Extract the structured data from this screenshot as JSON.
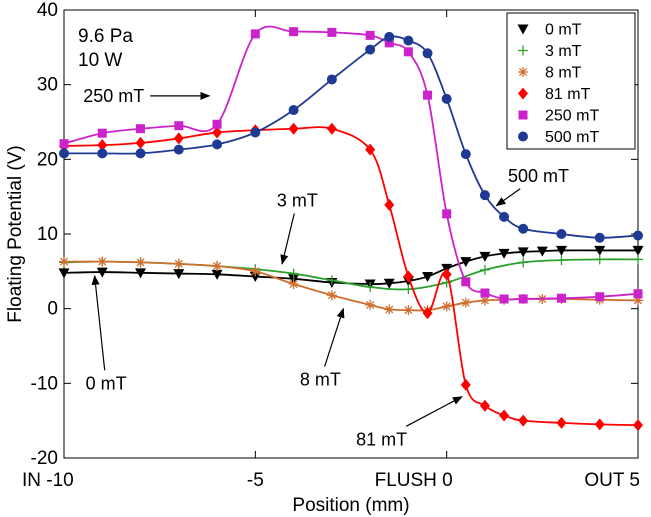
{
  "chart_data": {
    "type": "line",
    "xlabel": "Position (mm)",
    "ylabel": "Floating Potential (V)",
    "xlim": [
      -10,
      5
    ],
    "ylim": [
      -20,
      40
    ],
    "x_ticks": [
      {
        "value": -10,
        "label": "IN -10"
      },
      {
        "value": -5,
        "label": "-5"
      },
      {
        "value": 0,
        "label": "FLUSH 0"
      },
      {
        "value": 5,
        "label": "OUT 5"
      }
    ],
    "y_ticks": [
      -20,
      -10,
      0,
      10,
      20,
      30,
      40
    ],
    "conditions": [
      "9.6 Pa",
      "10 W"
    ],
    "legend_position": "top-right",
    "series": [
      {
        "name": "0 mT",
        "color": "#000000",
        "marker": "triangle-down",
        "x": [
          -10,
          -9,
          -8,
          -7,
          -6,
          -5,
          -4,
          -3,
          -2,
          -1.5,
          -1,
          -0.5,
          0,
          0.5,
          1,
          1.5,
          2,
          2.5,
          3,
          4,
          5
        ],
        "y": [
          4.8,
          4.9,
          4.8,
          4.7,
          4.6,
          4.3,
          4.0,
          3.5,
          3.3,
          3.4,
          3.7,
          4.3,
          5.4,
          6.3,
          7.0,
          7.4,
          7.6,
          7.7,
          7.8,
          7.8,
          7.8
        ]
      },
      {
        "name": "3 mT",
        "color": "#2ca02c",
        "marker": "plus",
        "x": [
          -10,
          -9,
          -8,
          -7,
          -6,
          -5,
          -4,
          -3,
          -2,
          -1,
          0,
          1,
          2,
          3,
          4,
          5
        ],
        "y": [
          6.2,
          6.3,
          6.2,
          6.0,
          5.7,
          5.3,
          4.7,
          3.8,
          2.9,
          2.6,
          3.5,
          5.2,
          6.2,
          6.5,
          6.6,
          6.6
        ]
      },
      {
        "name": "8 mT",
        "color": "#d07030",
        "marker": "asterisk",
        "x": [
          -10,
          -9,
          -8,
          -7,
          -6,
          -5,
          -4,
          -3,
          -2,
          -1.5,
          -1,
          -0.5,
          0,
          0.5,
          1,
          1.5,
          2,
          2.5,
          3,
          4,
          5
        ],
        "y": [
          6.3,
          6.3,
          6.2,
          6.0,
          5.7,
          5.0,
          3.3,
          1.8,
          0.5,
          -0.1,
          -0.2,
          -0.2,
          0.3,
          0.8,
          1.1,
          1.2,
          1.3,
          1.3,
          1.3,
          1.2,
          1.1
        ]
      },
      {
        "name": "81 mT",
        "color": "#ff0000",
        "marker": "diamond",
        "x": [
          -10,
          -9,
          -8,
          -7,
          -6,
          -5,
          -4,
          -3,
          -2,
          -1.5,
          -1,
          -0.5,
          0,
          0.5,
          1,
          1.5,
          2,
          3,
          4,
          5
        ],
        "y": [
          21.8,
          21.9,
          22.2,
          22.8,
          23.6,
          23.9,
          24.1,
          24.1,
          21.3,
          13.9,
          4.3,
          -0.6,
          4.6,
          -10.2,
          -13.0,
          -14.3,
          -15.0,
          -15.3,
          -15.5,
          -15.6
        ]
      },
      {
        "name": "250 mT",
        "color": "#cc22cc",
        "marker": "square",
        "x": [
          -10,
          -9,
          -8,
          -7,
          -6,
          -5,
          -4,
          -3,
          -2,
          -1.5,
          -1,
          -0.5,
          0,
          0.5,
          1,
          1.5,
          2,
          3,
          4,
          5
        ],
        "y": [
          22.1,
          23.5,
          24.1,
          24.5,
          24.7,
          36.8,
          37.1,
          37.0,
          36.6,
          35.6,
          34.4,
          28.6,
          12.7,
          3.6,
          2.1,
          1.3,
          1.3,
          1.4,
          1.6,
          2.0
        ]
      },
      {
        "name": "500 mT",
        "color": "#1f3a93",
        "marker": "circle",
        "x": [
          -10,
          -9,
          -8,
          -7,
          -6,
          -5,
          -4,
          -3,
          -2,
          -1.5,
          -1,
          -0.5,
          0,
          0.5,
          1,
          1.5,
          2,
          3,
          4,
          5
        ],
        "y": [
          20.8,
          20.8,
          20.8,
          21.3,
          22.0,
          23.6,
          26.6,
          30.7,
          34.7,
          36.4,
          35.9,
          34.2,
          28.1,
          20.7,
          15.2,
          12.3,
          10.7,
          10.0,
          9.5,
          9.8
        ]
      }
    ],
    "annotations": [
      {
        "text": "250 mT",
        "target_x": -6.2,
        "target_y": 28.5,
        "text_x": -8.7,
        "text_y": 28.5
      },
      {
        "text": "3 mT",
        "target_x": -4.3,
        "target_y": 6.0,
        "text_x": -3.9,
        "text_y": 14.5
      },
      {
        "text": "0 mT",
        "target_x": -9.2,
        "target_y": 4.4,
        "text_x": -8.9,
        "text_y": -10.0
      },
      {
        "text": "8 mT",
        "target_x": -2.7,
        "target_y": 0.0,
        "text_x": -3.3,
        "text_y": -9.5
      },
      {
        "text": "81 mT",
        "target_x": 0.4,
        "target_y": -11.8,
        "text_x": -1.7,
        "text_y": -17.5
      },
      {
        "text": "500 mT",
        "target_x": 1.3,
        "target_y": 13.8,
        "text_x": 2.4,
        "text_y": 17.8
      }
    ]
  }
}
